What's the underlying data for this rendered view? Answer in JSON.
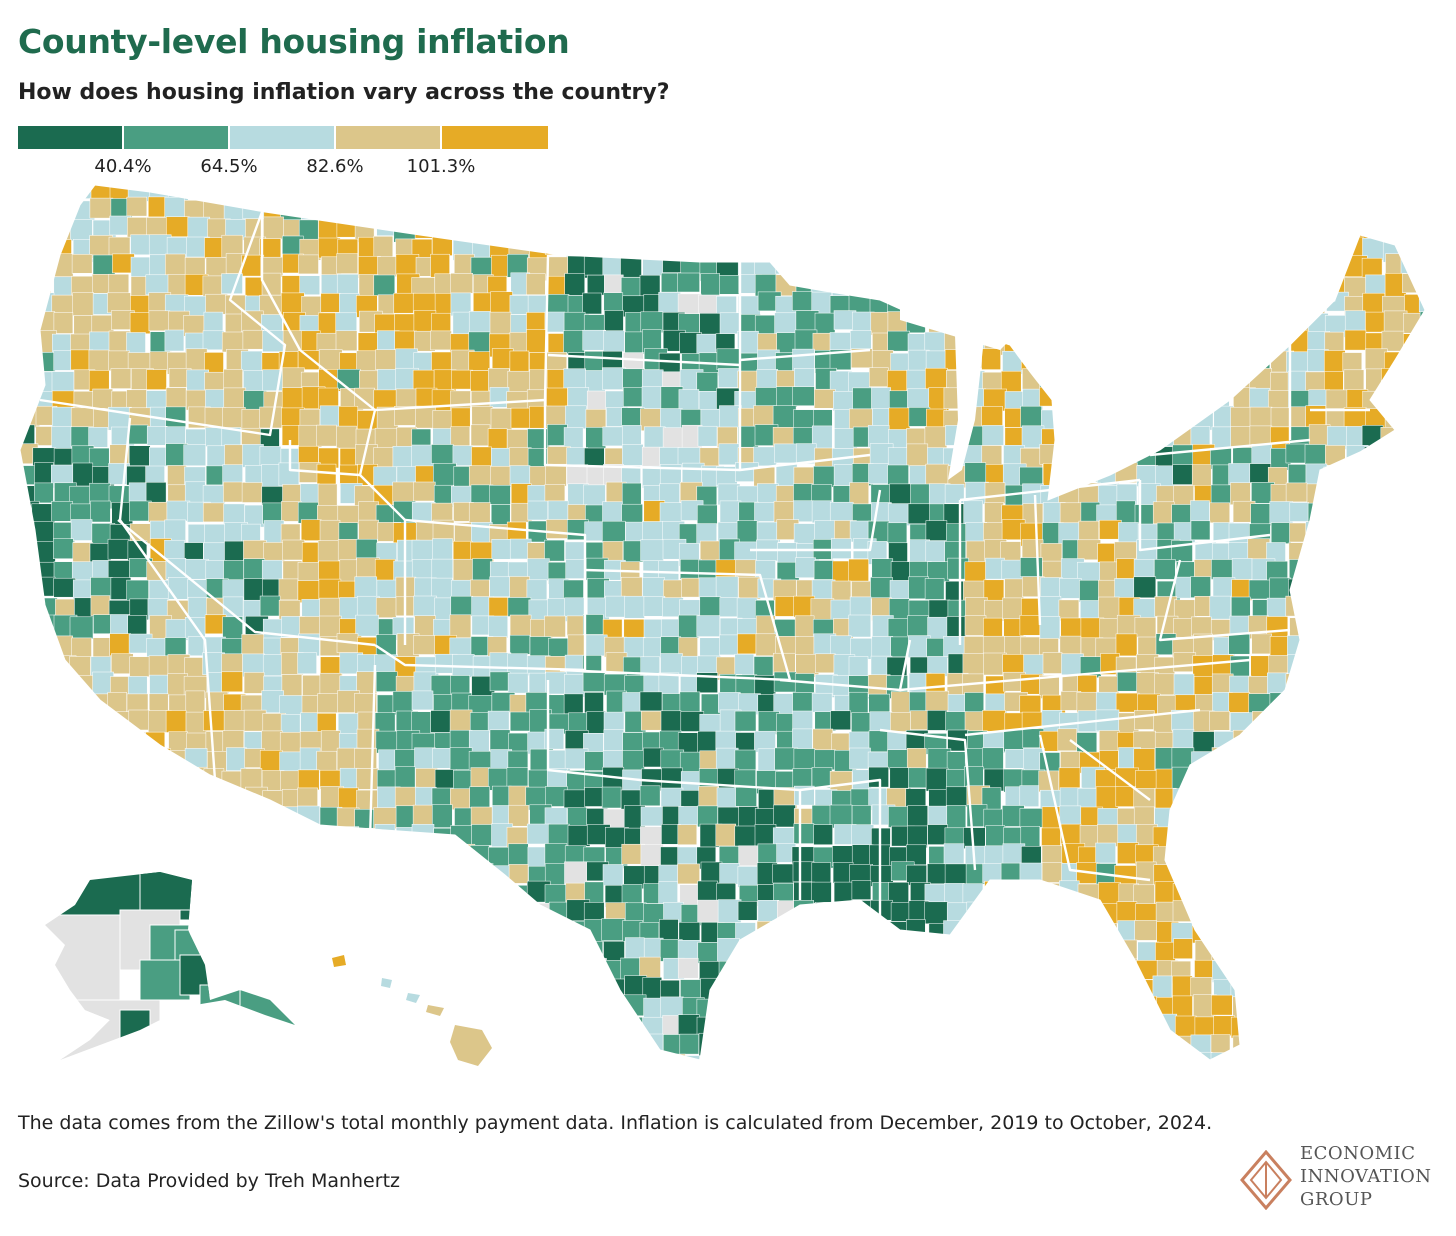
{
  "title": "County-level housing inflation",
  "subtitle": "How does housing inflation vary across the country?",
  "legend": {
    "colors": [
      "#1b6b50",
      "#4a9e82",
      "#b7dbe0",
      "#dcc68a",
      "#e6ab26"
    ],
    "ticks": [
      "40.4%",
      "64.5%",
      "82.6%",
      "101.3%"
    ]
  },
  "colors": {
    "no_data": "#e2e2e2",
    "border": "#ffffff"
  },
  "note": "The data comes from the Zillow's total monthly payment data. Inflation is calculated from December, 2019 to October, 2024.",
  "source": "Source: Data Provided by Treh Manhertz",
  "logo": {
    "line1": "ECONOMIC",
    "line2": "INNOVATION",
    "line3": "GROUP",
    "color": "#c9805f"
  }
}
